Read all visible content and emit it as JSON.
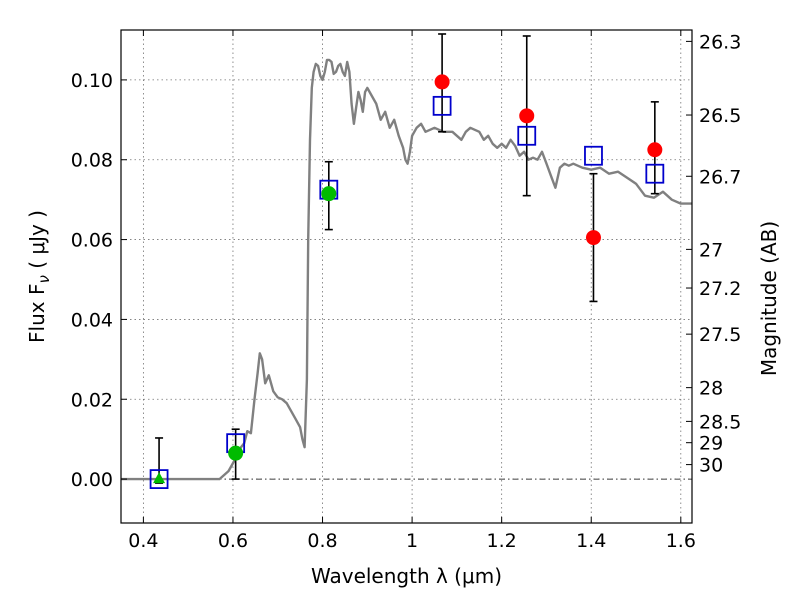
{
  "chart_data": {
    "type": "scatter",
    "xlabel": "Wavelength  λ (μm)",
    "ylabel": "Flux  F",
    "ylabel_subscript": "ν",
    "ylabel_unit": " ( μJy )",
    "y2label": "Magnitude (AB)",
    "xlim": [
      0.35,
      1.625
    ],
    "ylim": [
      -0.011,
      0.1125
    ],
    "x_ticks": [
      0.4,
      0.6,
      0.8,
      1.0,
      1.2,
      1.4,
      1.6
    ],
    "x_tick_labels": [
      "0.4",
      "0.6",
      "0.8",
      "1",
      "1.2",
      "1.4",
      "1.6"
    ],
    "y_ticks": [
      0.0,
      0.02,
      0.04,
      0.06,
      0.08,
      0.1
    ],
    "y_tick_labels": [
      "0.00",
      "0.02",
      "0.04",
      "0.06",
      "0.08",
      "0.10"
    ],
    "magnitude_ticks": [
      {
        "mag": 26.3,
        "label": "26.3"
      },
      {
        "mag": 26.5,
        "label": "26.5"
      },
      {
        "mag": 26.7,
        "label": "26.7"
      },
      {
        "mag": 27.0,
        "label": "27"
      },
      {
        "mag": 27.2,
        "label": "27.2"
      },
      {
        "mag": 27.5,
        "label": "27.5"
      },
      {
        "mag": 28.0,
        "label": "28"
      },
      {
        "mag": 28.5,
        "label": "28.5"
      },
      {
        "mag": 29.0,
        "label": "29"
      },
      {
        "mag": 30.0,
        "label": "30"
      }
    ],
    "grid": true,
    "zero_line": true,
    "model_spectrum": {
      "color": "#808080",
      "x": [
        0.35,
        0.4,
        0.45,
        0.5,
        0.55,
        0.57,
        0.59,
        0.6,
        0.61,
        0.618,
        0.625,
        0.632,
        0.64,
        0.648,
        0.655,
        0.66,
        0.665,
        0.672,
        0.68,
        0.69,
        0.7,
        0.71,
        0.72,
        0.73,
        0.74,
        0.75,
        0.755,
        0.76,
        0.765,
        0.768,
        0.772,
        0.776,
        0.78,
        0.785,
        0.79,
        0.795,
        0.8,
        0.805,
        0.81,
        0.815,
        0.82,
        0.825,
        0.83,
        0.835,
        0.84,
        0.845,
        0.85,
        0.855,
        0.86,
        0.865,
        0.87,
        0.875,
        0.88,
        0.885,
        0.89,
        0.895,
        0.9,
        0.91,
        0.92,
        0.93,
        0.94,
        0.95,
        0.96,
        0.97,
        0.98,
        0.985,
        0.99,
        0.995,
        1.0,
        1.01,
        1.02,
        1.03,
        1.04,
        1.05,
        1.06,
        1.07,
        1.08,
        1.09,
        1.1,
        1.11,
        1.12,
        1.13,
        1.14,
        1.15,
        1.16,
        1.17,
        1.18,
        1.19,
        1.2,
        1.21,
        1.22,
        1.23,
        1.24,
        1.25,
        1.26,
        1.27,
        1.28,
        1.29,
        1.3,
        1.31,
        1.32,
        1.33,
        1.34,
        1.35,
        1.36,
        1.38,
        1.4,
        1.42,
        1.44,
        1.46,
        1.48,
        1.5,
        1.52,
        1.54,
        1.56,
        1.58,
        1.6,
        1.625
      ],
      "y": [
        0.0,
        0.0,
        0.0,
        0.0,
        0.0,
        0.0,
        0.002,
        0.004,
        0.006,
        0.008,
        0.009,
        0.012,
        0.0115,
        0.02,
        0.0265,
        0.0315,
        0.03,
        0.024,
        0.026,
        0.022,
        0.0205,
        0.02,
        0.019,
        0.017,
        0.015,
        0.013,
        0.01,
        0.008,
        0.025,
        0.06,
        0.085,
        0.098,
        0.102,
        0.104,
        0.1035,
        0.101,
        0.1,
        0.102,
        0.105,
        0.105,
        0.1045,
        0.1015,
        0.102,
        0.1035,
        0.104,
        0.102,
        0.101,
        0.1045,
        0.102,
        0.094,
        0.089,
        0.093,
        0.097,
        0.095,
        0.092,
        0.097,
        0.098,
        0.096,
        0.094,
        0.09,
        0.092,
        0.088,
        0.09,
        0.086,
        0.083,
        0.08,
        0.079,
        0.082,
        0.086,
        0.088,
        0.089,
        0.087,
        0.0875,
        0.088,
        0.0875,
        0.087,
        0.087,
        0.087,
        0.086,
        0.085,
        0.087,
        0.088,
        0.0875,
        0.087,
        0.085,
        0.086,
        0.084,
        0.083,
        0.084,
        0.083,
        0.085,
        0.0835,
        0.081,
        0.082,
        0.08,
        0.0805,
        0.08,
        0.082,
        0.079,
        0.076,
        0.073,
        0.078,
        0.079,
        0.0785,
        0.079,
        0.078,
        0.0775,
        0.078,
        0.0765,
        0.077,
        0.0755,
        0.074,
        0.071,
        0.0705,
        0.072,
        0.07,
        0.069,
        0.069
      ]
    },
    "series": [
      {
        "name": "",
        "marker": "open-square",
        "color": "#0000cc",
        "points": [
          {
            "x": 0.435,
            "y": 0.0
          },
          {
            "x": 0.606,
            "y": 0.009
          },
          {
            "x": 0.814,
            "y": 0.0725
          },
          {
            "x": 1.067,
            "y": 0.0935
          },
          {
            "x": 1.256,
            "y": 0.086
          },
          {
            "x": 1.405,
            "y": 0.081
          },
          {
            "x": 1.542,
            "y": 0.0765
          }
        ]
      },
      {
        "name": "",
        "marker": "filled-circle",
        "color": "#ff0000",
        "points": [
          {
            "x": 1.067,
            "y": 0.0995,
            "yerr_low": 0.087,
            "yerr_high": 0.1115
          },
          {
            "x": 1.256,
            "y": 0.091,
            "yerr_low": 0.071,
            "yerr_high": 0.111
          },
          {
            "x": 1.405,
            "y": 0.0605,
            "yerr_low": 0.0445,
            "yerr_high": 0.0765
          },
          {
            "x": 1.542,
            "y": 0.0825,
            "yerr_low": 0.0715,
            "yerr_high": 0.0945
          }
        ]
      },
      {
        "name": "",
        "marker": "filled-circle",
        "color": "#00bb00",
        "points": [
          {
            "x": 0.606,
            "y": 0.0065,
            "yerr_low": 0.0,
            "yerr_high": 0.0125
          },
          {
            "x": 0.814,
            "y": 0.0715,
            "yerr_low": 0.0625,
            "yerr_high": 0.0795
          }
        ]
      },
      {
        "name": "",
        "marker": "filled-triangle",
        "color": "#00bb00",
        "points": [
          {
            "x": 0.435,
            "y": 0.0,
            "yerr_low": -0.001,
            "yerr_high": 0.0103
          }
        ]
      }
    ]
  }
}
